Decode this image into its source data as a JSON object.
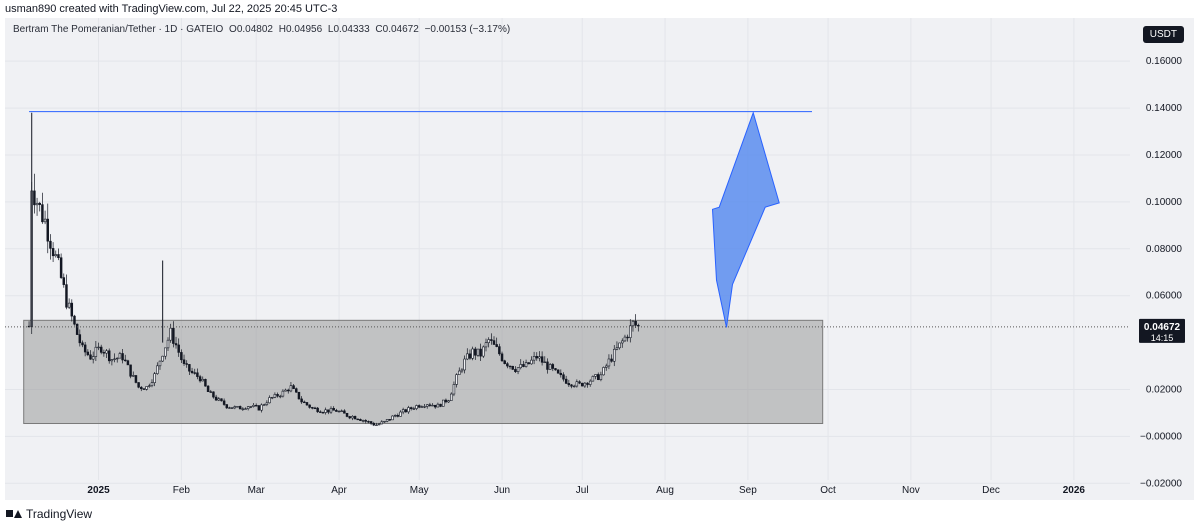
{
  "header": {
    "credit": "usman890 created with TradingView.com, Jul 22, 2025 20:45 UTC-3"
  },
  "legend": {
    "symbol": "Bertram The Pomeranian/Tether · 1D · GATEIO",
    "open": "O0.04802",
    "high": "H0.04956",
    "low": "L0.04333",
    "close": "C0.04672",
    "change": "−0.00153 (−3.17%)"
  },
  "currency": "USDT",
  "price_label": {
    "price": "0.04672",
    "countdown": "14:15"
  },
  "footer": {
    "brand": "TradingView"
  },
  "colors": {
    "candle": "#131722",
    "resistance_line": "#2962ff",
    "arrow": "#5b8def",
    "range_box": "#9a9a9a",
    "price_badge": "#131722"
  },
  "chart_data": {
    "type": "candlestick",
    "title": "",
    "xlabel": "",
    "ylabel": "",
    "ylim": [
      -0.022,
      0.175
    ],
    "y_ticks": [
      "0.16000",
      "0.14000",
      "0.12000",
      "0.10000",
      "0.08000",
      "0.06000",
      "0.02000",
      "−0.00000",
      "−0.02000"
    ],
    "y_tick_values": [
      0.16,
      0.14,
      0.12,
      0.1,
      0.08,
      0.06,
      0.02,
      0.0,
      -0.02
    ],
    "x_ticks": [
      "2025",
      "Feb",
      "Mar",
      "Apr",
      "May",
      "Jun",
      "Jul",
      "Aug",
      "Sep",
      "Oct",
      "Nov",
      "Dec",
      "2026"
    ],
    "x_tick_dates": [
      "2025-01-01",
      "2025-02-01",
      "2025-03-01",
      "2025-04-01",
      "2025-05-01",
      "2025-06-01",
      "2025-07-01",
      "2025-08-01",
      "2025-09-01",
      "2025-10-01",
      "2025-11-01",
      "2025-12-01",
      "2026-01-01"
    ],
    "xlim": [
      "2024-11-27",
      "2026-01-22"
    ],
    "last_price": 0.04672,
    "price_path": [
      [
        "2024-12-06",
        0.047
      ],
      [
        "2024-12-07",
        0.108
      ],
      [
        "2024-12-08",
        0.104
      ],
      [
        "2024-12-10",
        0.097
      ],
      [
        "2024-12-12",
        0.092
      ],
      [
        "2024-12-14",
        0.084
      ],
      [
        "2024-12-17",
        0.072
      ],
      [
        "2024-12-20",
        0.058
      ],
      [
        "2024-12-23",
        0.047
      ],
      [
        "2024-12-26",
        0.037
      ],
      [
        "2024-12-29",
        0.034
      ],
      [
        "2025-01-02",
        0.038
      ],
      [
        "2025-01-06",
        0.033
      ],
      [
        "2025-01-10",
        0.034
      ],
      [
        "2025-01-13",
        0.027
      ],
      [
        "2025-01-16",
        0.021
      ],
      [
        "2025-01-19",
        0.021
      ],
      [
        "2025-01-22",
        0.026
      ],
      [
        "2025-01-25",
        0.036
      ],
      [
        "2025-01-28",
        0.044
      ],
      [
        "2025-01-30",
        0.039
      ],
      [
        "2025-02-02",
        0.03
      ],
      [
        "2025-02-05",
        0.027
      ],
      [
        "2025-02-08",
        0.025
      ],
      [
        "2025-02-11",
        0.019
      ],
      [
        "2025-02-14",
        0.016
      ],
      [
        "2025-02-18",
        0.013
      ],
      [
        "2025-02-22",
        0.012
      ],
      [
        "2025-02-26",
        0.013
      ],
      [
        "2025-03-02",
        0.012
      ],
      [
        "2025-03-06",
        0.016
      ],
      [
        "2025-03-10",
        0.018
      ],
      [
        "2025-03-14",
        0.021
      ],
      [
        "2025-03-18",
        0.015
      ],
      [
        "2025-03-22",
        0.012
      ],
      [
        "2025-03-26",
        0.011
      ],
      [
        "2025-03-31",
        0.011
      ],
      [
        "2025-04-04",
        0.009
      ],
      [
        "2025-04-08",
        0.008
      ],
      [
        "2025-04-12",
        0.006
      ],
      [
        "2025-04-15",
        0.005
      ],
      [
        "2025-04-18",
        0.006
      ],
      [
        "2025-04-22",
        0.009
      ],
      [
        "2025-04-26",
        0.011
      ],
      [
        "2025-04-30",
        0.013
      ],
      [
        "2025-05-04",
        0.014
      ],
      [
        "2025-05-08",
        0.013
      ],
      [
        "2025-05-12",
        0.016
      ],
      [
        "2025-05-15",
        0.025
      ],
      [
        "2025-05-18",
        0.032
      ],
      [
        "2025-05-21",
        0.036
      ],
      [
        "2025-05-24",
        0.035
      ],
      [
        "2025-05-27",
        0.041
      ],
      [
        "2025-05-30",
        0.037
      ],
      [
        "2025-06-02",
        0.032
      ],
      [
        "2025-06-06",
        0.029
      ],
      [
        "2025-06-10",
        0.03
      ],
      [
        "2025-06-14",
        0.034
      ],
      [
        "2025-06-18",
        0.03
      ],
      [
        "2025-06-22",
        0.026
      ],
      [
        "2025-06-26",
        0.023
      ],
      [
        "2025-06-30",
        0.022
      ],
      [
        "2025-07-04",
        0.024
      ],
      [
        "2025-07-08",
        0.026
      ],
      [
        "2025-07-11",
        0.032
      ],
      [
        "2025-07-14",
        0.037
      ],
      [
        "2025-07-17",
        0.042
      ],
      [
        "2025-07-20",
        0.048
      ],
      [
        "2025-07-22",
        0.04672
      ]
    ],
    "annotations": {
      "range_box": {
        "x_start": "2024-12-04",
        "x_end": "2025-09-29",
        "y_low": 0.0055,
        "y_high": 0.0495
      },
      "resistance_line": {
        "x_start": "2024-12-06",
        "x_end": "2025-09-25",
        "y": 0.1385
      },
      "up_arrow": {
        "x_start": "2025-08-24",
        "y_start": 0.0465,
        "x_tip": "2025-09-03",
        "y_tip": 0.138
      }
    }
  }
}
